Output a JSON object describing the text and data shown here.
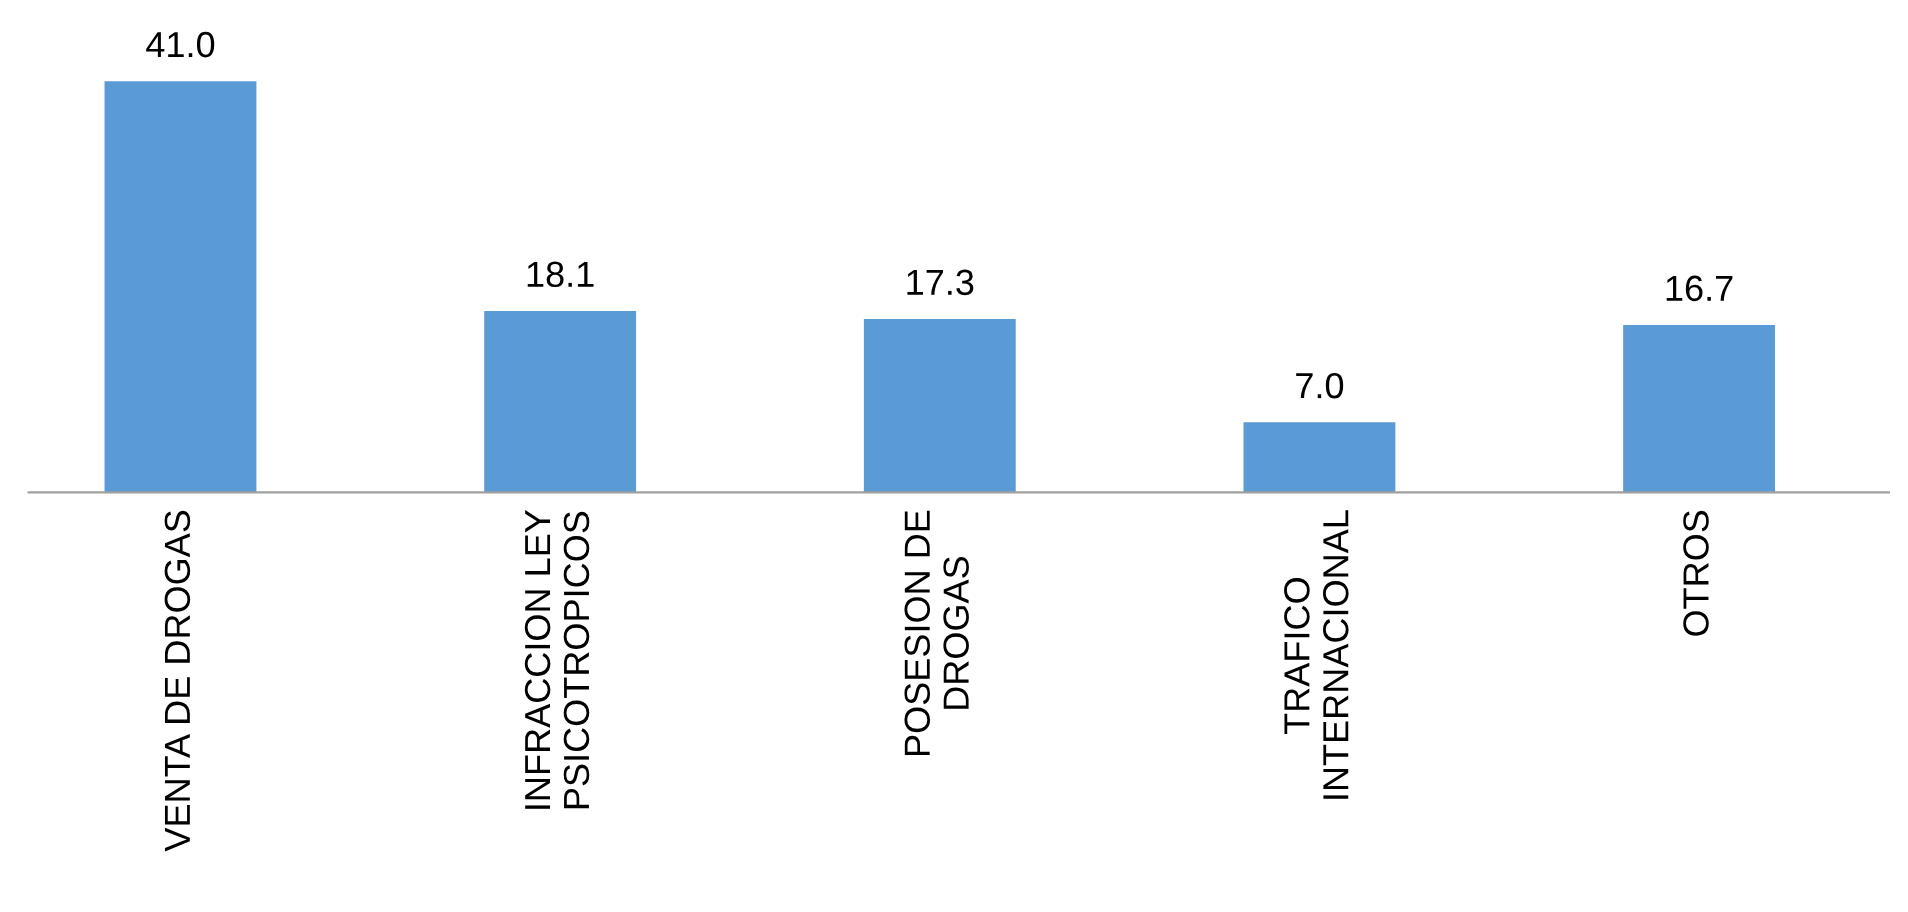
{
  "chart_data": {
    "type": "bar",
    "categories": [
      "VENTA DE DROGAS",
      "INFRACCION LEY\nPSICOTROPICOS",
      "POSESION DE\nDROGAS",
      "TRAFICO\nINTERNACIONAL",
      "OTROS"
    ],
    "values": [
      41.0,
      18.1,
      17.3,
      7.0,
      16.7
    ],
    "value_labels": [
      "41.0",
      "18.1",
      "17.3",
      "7.0",
      "16.7"
    ],
    "color": "#5b9bd5",
    "grid": false,
    "legend": false
  }
}
